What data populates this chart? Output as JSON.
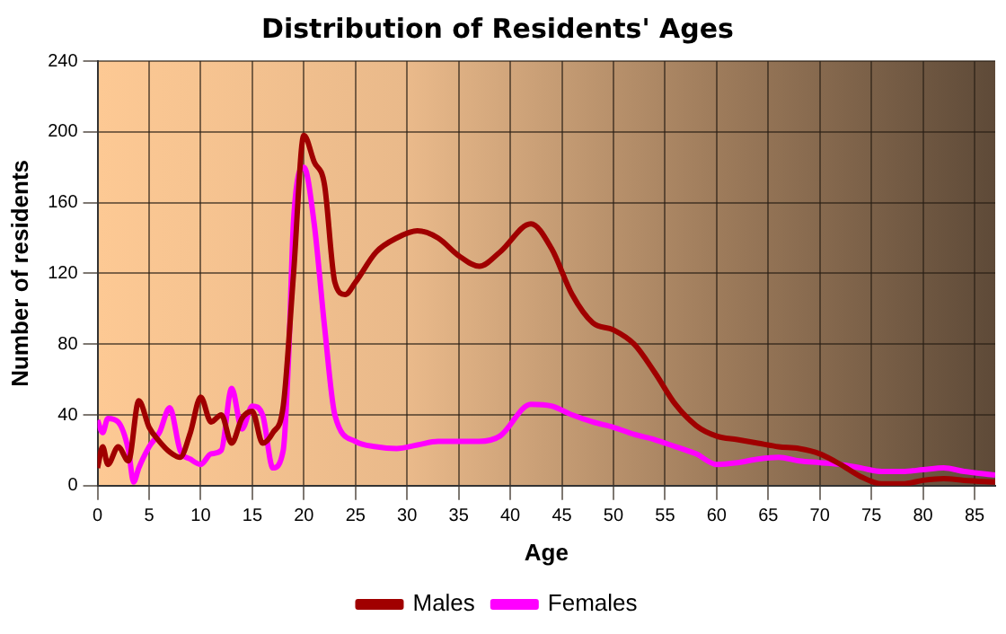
{
  "chart_data": {
    "type": "line",
    "title": "Distribution of Residents' Ages",
    "xlabel": "Age",
    "ylabel": "Number of residents",
    "xlim": [
      0,
      87
    ],
    "xticks": [
      0,
      5,
      10,
      15,
      20,
      25,
      30,
      35,
      40,
      45,
      50,
      55,
      60,
      65,
      70,
      75,
      80,
      85
    ],
    "ylim": [
      0,
      240
    ],
    "yticks": [
      0,
      40,
      80,
      120,
      160,
      200,
      240
    ],
    "grid": true,
    "legend": "bottom",
    "marker": "none",
    "line_style": "solid",
    "series": [
      {
        "name": "Males",
        "color": "#a00000",
        "x": [
          0,
          0.5,
          1,
          2,
          3,
          4,
          5,
          6,
          7,
          8,
          9,
          10,
          11,
          12,
          13,
          14,
          15,
          16,
          17,
          18,
          19,
          20,
          21,
          22,
          23,
          24,
          25,
          27,
          29,
          31,
          33,
          35,
          37,
          39,
          42,
          44,
          46,
          48,
          50,
          52,
          54,
          56,
          58,
          60,
          62,
          64,
          66,
          68,
          70,
          72,
          74,
          76,
          78,
          80,
          82,
          84,
          87
        ],
        "values": [
          10,
          22,
          12,
          22,
          14,
          48,
          33,
          25,
          19,
          16,
          30,
          50,
          36,
          40,
          24,
          38,
          42,
          24,
          30,
          45,
          120,
          198,
          183,
          170,
          115,
          108,
          115,
          132,
          140,
          144,
          140,
          130,
          124,
          132,
          148,
          134,
          108,
          92,
          88,
          80,
          64,
          46,
          34,
          28,
          26,
          24,
          22,
          21,
          18,
          12,
          5,
          1,
          1,
          3,
          4,
          3,
          2
        ]
      },
      {
        "name": "Females",
        "color": "#ff00ff",
        "x": [
          0,
          0.5,
          1,
          2,
          3,
          3.5,
          4,
          5,
          6,
          7,
          8,
          9,
          10,
          11,
          12,
          13,
          14,
          15,
          16,
          17,
          18,
          18.5,
          19,
          20,
          21,
          22,
          23,
          25,
          27,
          29,
          31,
          33,
          35,
          37,
          39,
          42,
          44,
          46,
          48,
          50,
          52,
          54,
          56,
          58,
          60,
          62,
          64,
          66,
          68,
          70,
          72,
          74,
          76,
          78,
          80,
          82,
          84,
          87
        ],
        "values": [
          37,
          30,
          38,
          36,
          20,
          2,
          10,
          22,
          30,
          44,
          20,
          15,
          12,
          18,
          20,
          55,
          32,
          45,
          40,
          10,
          20,
          70,
          150,
          180,
          148,
          90,
          40,
          25,
          22,
          21,
          23,
          25,
          25,
          25,
          28,
          46,
          45,
          40,
          36,
          33,
          29,
          26,
          22,
          18,
          12,
          13,
          15,
          16,
          14,
          13,
          12,
          10,
          8,
          8,
          9,
          10,
          8,
          6
        ]
      }
    ]
  }
}
